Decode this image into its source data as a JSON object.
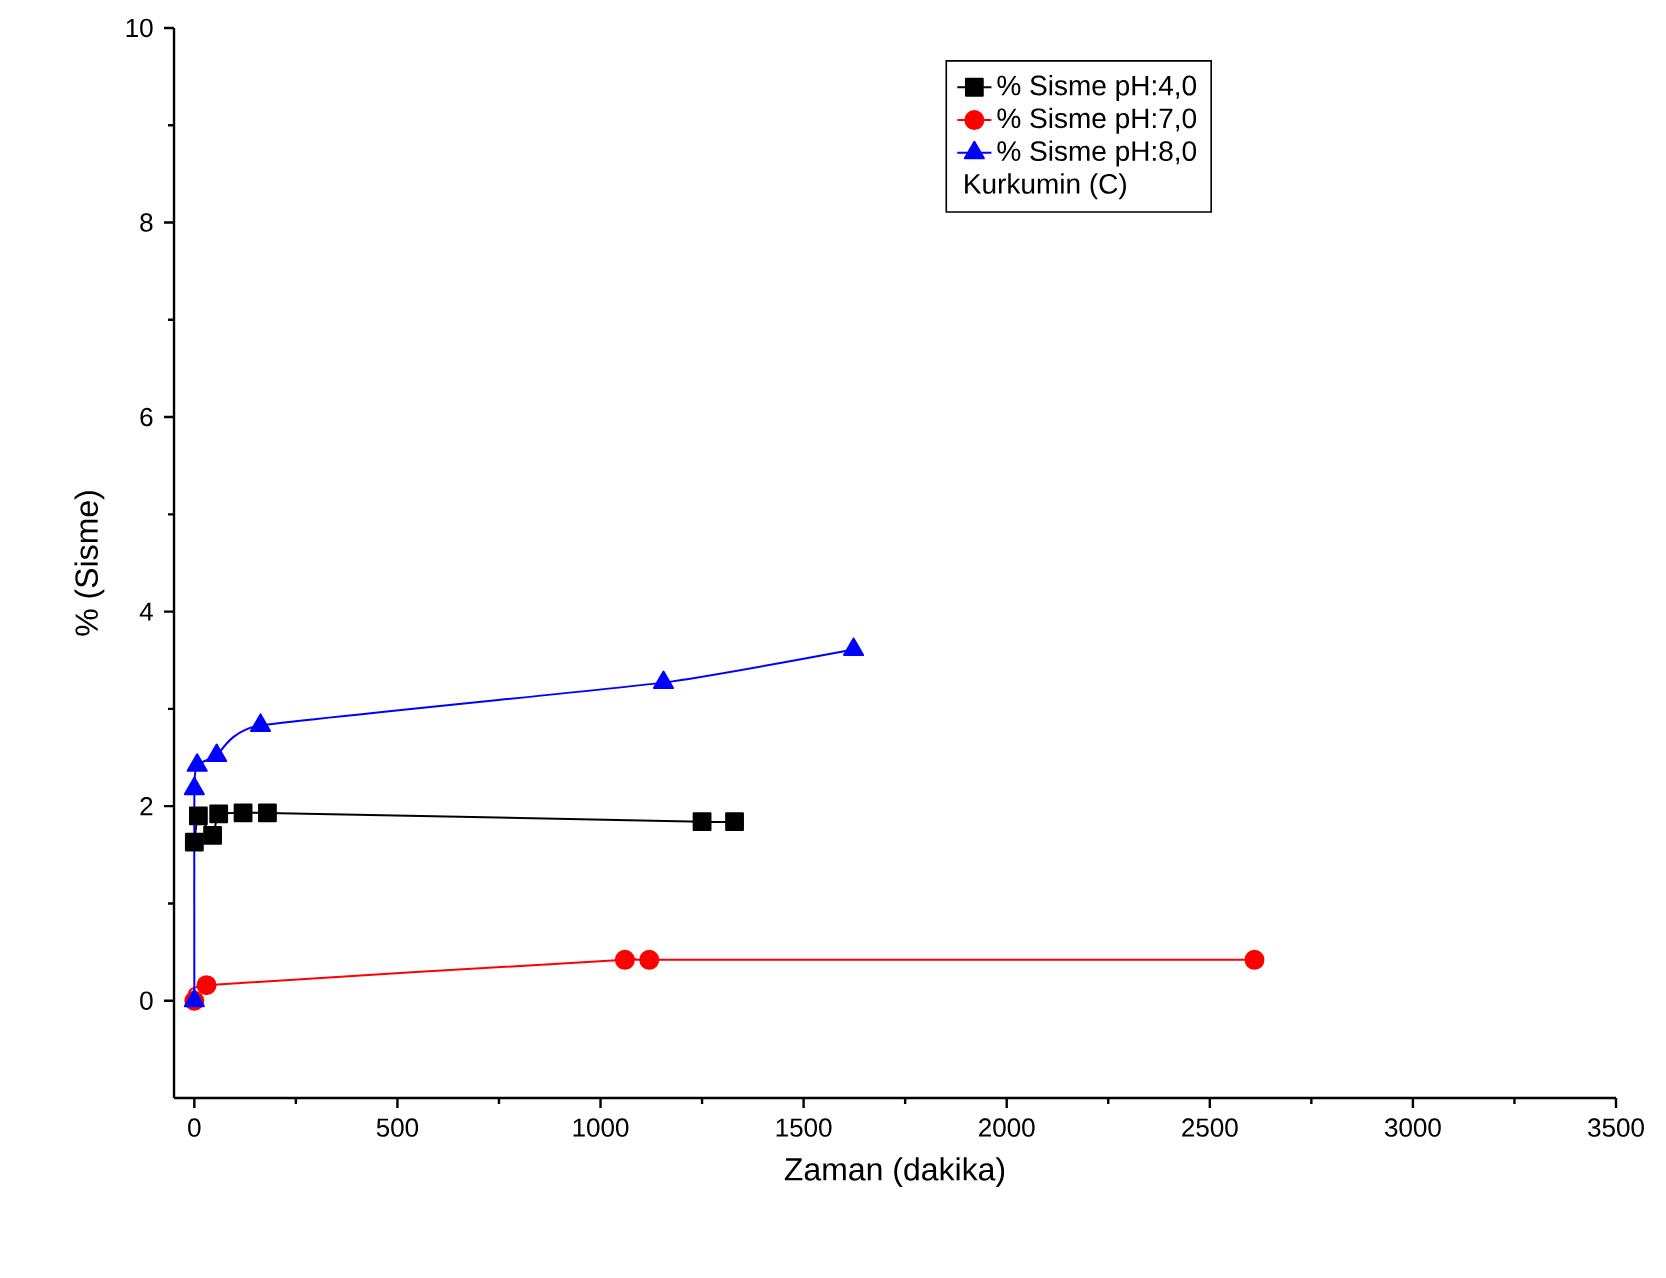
{
  "chart_data": {
    "type": "line",
    "xlabel": "Zaman (dakika)",
    "ylabel": "% (Sisme)",
    "legend_title": "Kurkumin (C)",
    "series": [
      {
        "name": "% Sisme pH:4,0",
        "color": "#000000",
        "marker": "square",
        "x": [
          0,
          10,
          45,
          60,
          120,
          180,
          1250,
          1330
        ],
        "values": [
          1.63,
          1.9,
          1.7,
          1.92,
          1.93,
          1.93,
          1.84,
          1.84
        ]
      },
      {
        "name": "% Sisme pH:7,0",
        "color": "#ff0000",
        "marker": "circle",
        "x": [
          0,
          30,
          1060,
          1120,
          2610
        ],
        "values": [
          0,
          0.16,
          0.42,
          0.42,
          0.42
        ]
      },
      {
        "name": "% Sisme pH:8,0",
        "color": "#0000ff",
        "marker": "triangle",
        "x": [
          0,
          0,
          7,
          55,
          163,
          1155,
          1623
        ],
        "values": [
          0,
          2.18,
          2.42,
          2.52,
          2.83,
          3.27,
          3.61
        ]
      }
    ],
    "xlim": [
      -50,
      3500
    ],
    "ylim": [
      -1,
      10
    ],
    "xticks": [
      0,
      500,
      1000,
      1500,
      2000,
      2500,
      3000,
      3500
    ],
    "yticks": [
      0,
      2,
      4,
      6,
      8,
      10
    ],
    "grid": false,
    "legend": "top right"
  }
}
